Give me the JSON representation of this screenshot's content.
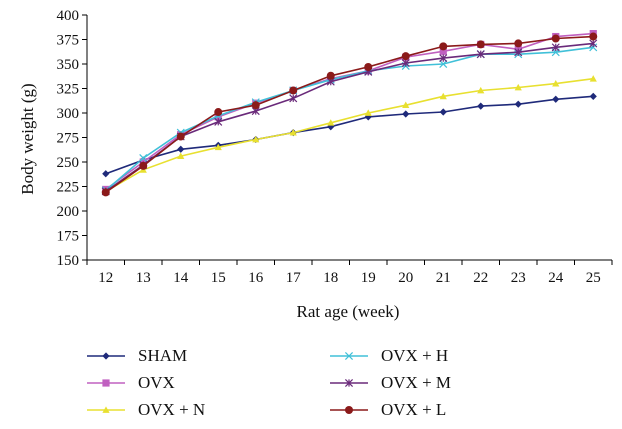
{
  "chart_data": {
    "type": "line",
    "title": "",
    "xlabel": "Rat age (week)",
    "ylabel": "Body weight (g)",
    "x": [
      12,
      13,
      14,
      15,
      16,
      17,
      18,
      19,
      20,
      21,
      22,
      23,
      24,
      25
    ],
    "xlim": [
      11.5,
      25.5
    ],
    "ylim": [
      150,
      400
    ],
    "yticks": [
      150,
      175,
      200,
      225,
      250,
      275,
      300,
      325,
      350,
      375,
      400
    ],
    "grid": false,
    "legend_position": "bottom",
    "series": [
      {
        "name": "SHAM",
        "color": "#1f2a7a",
        "marker": "diamond",
        "values": [
          238,
          252,
          263,
          267,
          273,
          280,
          286,
          296,
          299,
          301,
          307,
          309,
          314,
          317
        ]
      },
      {
        "name": "OVX",
        "color": "#c060c0",
        "marker": "square",
        "values": [
          222,
          250,
          278,
          296,
          310,
          323,
          335,
          343,
          357,
          363,
          370,
          365,
          378,
          381
        ]
      },
      {
        "name": "OVX + N",
        "color": "#e8e030",
        "marker": "triangle",
        "values": [
          220,
          242,
          256,
          265,
          273,
          280,
          290,
          300,
          308,
          317,
          323,
          326,
          330,
          335
        ]
      },
      {
        "name": "OVX + H",
        "color": "#40c0d8",
        "marker": "x",
        "values": [
          221,
          254,
          280,
          297,
          311,
          323,
          334,
          343,
          348,
          350,
          360,
          360,
          362,
          367
        ]
      },
      {
        "name": "OVX + M",
        "color": "#6a2a7a",
        "marker": "star",
        "values": [
          220,
          247,
          276,
          291,
          302,
          315,
          332,
          342,
          351,
          356,
          360,
          362,
          367,
          371
        ]
      },
      {
        "name": "OVX + L",
        "color": "#8b1a1a",
        "marker": "circle",
        "values": [
          219,
          246,
          276,
          301,
          308,
          323,
          338,
          347,
          358,
          368,
          370,
          371,
          376,
          378
        ]
      }
    ]
  }
}
